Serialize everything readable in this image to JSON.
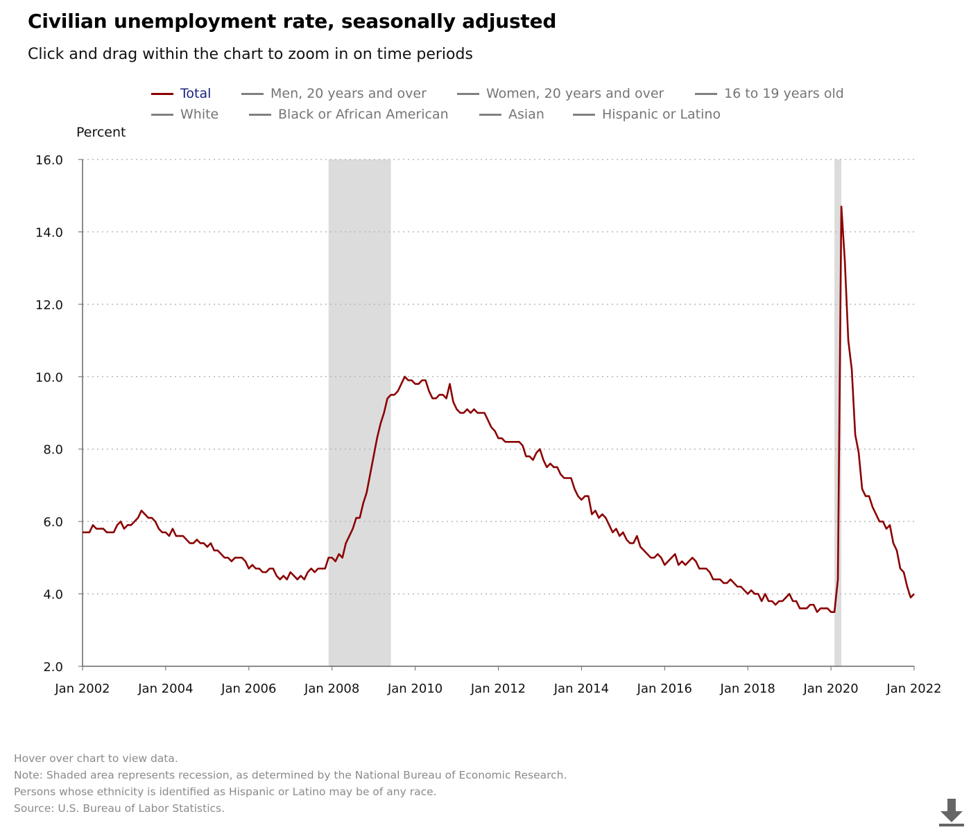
{
  "title": "Civilian unemployment rate, seasonally adjusted",
  "subtitle": "Click and drag within the chart to zoom in on time periods",
  "legend": [
    {
      "label": "Total",
      "active": true
    },
    {
      "label": "Men, 20 years and over",
      "active": false
    },
    {
      "label": "Women, 20 years and over",
      "active": false
    },
    {
      "label": "16 to 19 years old",
      "active": false
    },
    {
      "label": "White",
      "active": false
    },
    {
      "label": "Black or African American",
      "active": false
    },
    {
      "label": "Asian",
      "active": false
    },
    {
      "label": "Hispanic or Latino",
      "active": false
    }
  ],
  "notes": [
    "Hover over chart to view data.",
    "Note: Shaded area represents recession, as determined by the National Bureau of Economic Research.",
    "Persons whose ethnicity is identified as Hispanic or Latino may be of any race.",
    "Source: U.S. Bureau of Labor Statistics."
  ],
  "colors": {
    "series": "#8b0000",
    "recession": "#dcdcdc",
    "grid": "#b5b5b5",
    "axis": "#666666",
    "legend_active_text": "#1a237e",
    "legend_inactive": "#808080",
    "notes": "#8a8a8a"
  },
  "icons": {
    "download": "download-icon"
  },
  "chart_data": {
    "type": "line",
    "title": "Civilian unemployment rate, seasonally adjusted",
    "ylabel": "Percent",
    "xlabel": "",
    "ylim": [
      2.0,
      16.0
    ],
    "yticks": [
      "2.0",
      "4.0",
      "6.0",
      "8.0",
      "10.0",
      "12.0",
      "14.0",
      "16.0"
    ],
    "xlim": [
      "2002-01",
      "2022-01"
    ],
    "xticks": [
      "Jan 2002",
      "Jan 2004",
      "Jan 2006",
      "Jan 2008",
      "Jan 2010",
      "Jan 2012",
      "Jan 2014",
      "Jan 2016",
      "Jan 2018",
      "Jan 2020",
      "Jan 2022"
    ],
    "grid": "horizontal dotted",
    "legend_position": "top",
    "recessions": [
      {
        "start": "2007-12",
        "end": "2009-06"
      },
      {
        "start": "2020-02",
        "end": "2020-04"
      }
    ],
    "series": [
      {
        "name": "Total",
        "start": "2002-01",
        "frequency": "monthly",
        "values": [
          5.7,
          5.7,
          5.7,
          5.9,
          5.8,
          5.8,
          5.8,
          5.7,
          5.7,
          5.7,
          5.9,
          6.0,
          5.8,
          5.9,
          5.9,
          6.0,
          6.1,
          6.3,
          6.2,
          6.1,
          6.1,
          6.0,
          5.8,
          5.7,
          5.7,
          5.6,
          5.8,
          5.6,
          5.6,
          5.6,
          5.5,
          5.4,
          5.4,
          5.5,
          5.4,
          5.4,
          5.3,
          5.4,
          5.2,
          5.2,
          5.1,
          5.0,
          5.0,
          4.9,
          5.0,
          5.0,
          5.0,
          4.9,
          4.7,
          4.8,
          4.7,
          4.7,
          4.6,
          4.6,
          4.7,
          4.7,
          4.5,
          4.4,
          4.5,
          4.4,
          4.6,
          4.5,
          4.4,
          4.5,
          4.4,
          4.6,
          4.7,
          4.6,
          4.7,
          4.7,
          4.7,
          5.0,
          5.0,
          4.9,
          5.1,
          5.0,
          5.4,
          5.6,
          5.8,
          6.1,
          6.1,
          6.5,
          6.8,
          7.3,
          7.8,
          8.3,
          8.7,
          9.0,
          9.4,
          9.5,
          9.5,
          9.6,
          9.8,
          10.0,
          9.9,
          9.9,
          9.8,
          9.8,
          9.9,
          9.9,
          9.6,
          9.4,
          9.4,
          9.5,
          9.5,
          9.4,
          9.8,
          9.3,
          9.1,
          9.0,
          9.0,
          9.1,
          9.0,
          9.1,
          9.0,
          9.0,
          9.0,
          8.8,
          8.6,
          8.5,
          8.3,
          8.3,
          8.2,
          8.2,
          8.2,
          8.2,
          8.2,
          8.1,
          7.8,
          7.8,
          7.7,
          7.9,
          8.0,
          7.7,
          7.5,
          7.6,
          7.5,
          7.5,
          7.3,
          7.2,
          7.2,
          7.2,
          6.9,
          6.7,
          6.6,
          6.7,
          6.7,
          6.2,
          6.3,
          6.1,
          6.2,
          6.1,
          5.9,
          5.7,
          5.8,
          5.6,
          5.7,
          5.5,
          5.4,
          5.4,
          5.6,
          5.3,
          5.2,
          5.1,
          5.0,
          5.0,
          5.1,
          5.0,
          4.8,
          4.9,
          5.0,
          5.1,
          4.8,
          4.9,
          4.8,
          4.9,
          5.0,
          4.9,
          4.7,
          4.7,
          4.7,
          4.6,
          4.4,
          4.4,
          4.4,
          4.3,
          4.3,
          4.4,
          4.3,
          4.2,
          4.2,
          4.1,
          4.0,
          4.1,
          4.0,
          4.0,
          3.8,
          4.0,
          3.8,
          3.8,
          3.7,
          3.8,
          3.8,
          3.9,
          4.0,
          3.8,
          3.8,
          3.6,
          3.6,
          3.6,
          3.7,
          3.7,
          3.5,
          3.6,
          3.6,
          3.6,
          3.5,
          3.5,
          4.4,
          14.7,
          13.2,
          11.0,
          10.2,
          8.4,
          7.9,
          6.9,
          6.7,
          6.7,
          6.4,
          6.2,
          6.0,
          6.0,
          5.8,
          5.9,
          5.4,
          5.2,
          4.7,
          4.6,
          4.2,
          3.9,
          4.0
        ]
      }
    ]
  }
}
